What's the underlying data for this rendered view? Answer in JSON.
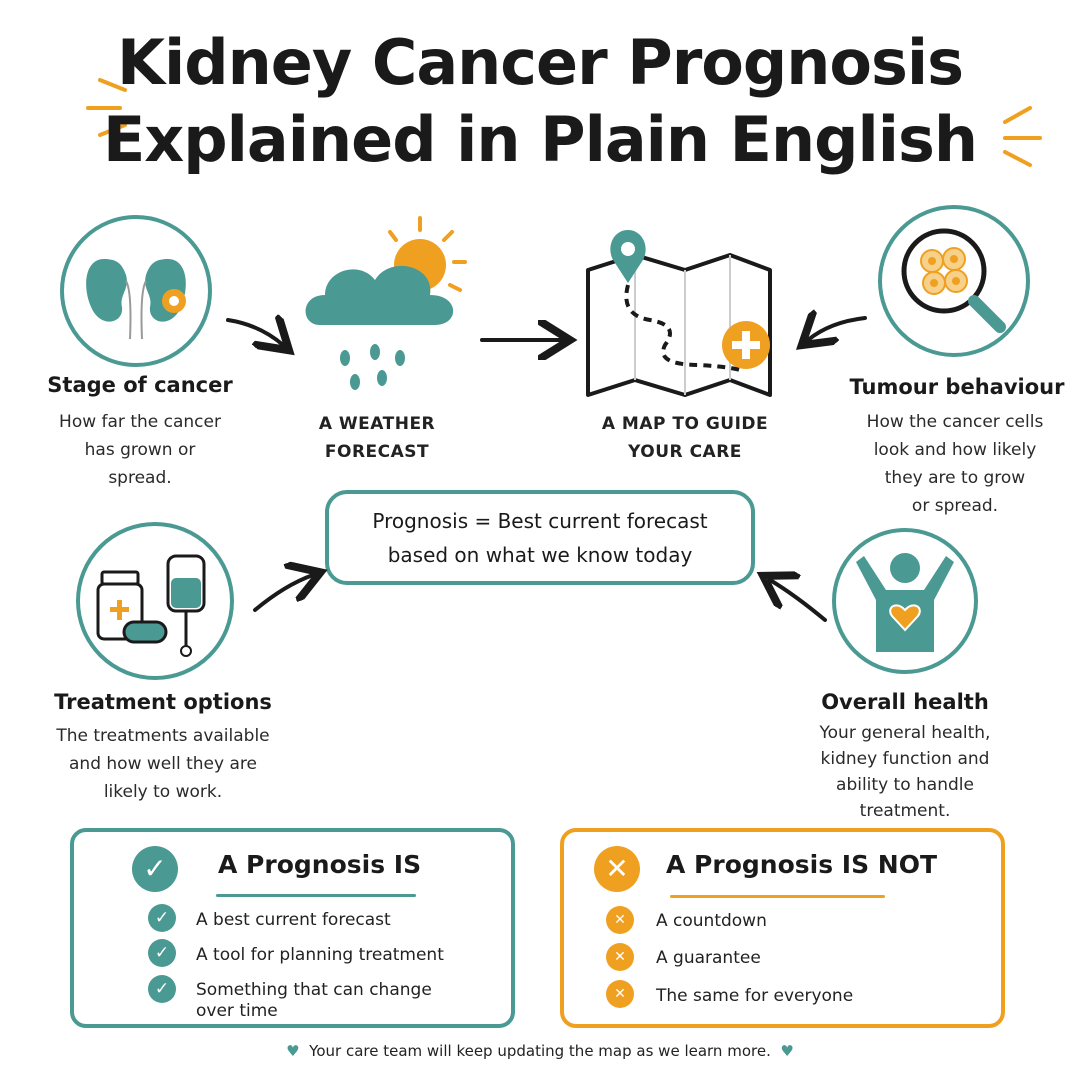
{
  "title": {
    "line1": "Kidney Cancer Prognosis",
    "line2": "Explained in Plain English"
  },
  "colors": {
    "teal": "#4a9a93",
    "orange": "#f0a020",
    "text": "#1a1a1a"
  },
  "metaphors": [
    {
      "icon": "weather-cloud-sun-icon",
      "line1": "A WEATHER",
      "line2": "FORECAST"
    },
    {
      "icon": "map-route-icon",
      "line1": "A MAP TO GUIDE",
      "line2": "YOUR CARE"
    }
  ],
  "factors": {
    "stage": {
      "icon": "kidney-icon",
      "title": "Stage of cancer",
      "desc": [
        "How far the cancer",
        "has grown or",
        "spread."
      ]
    },
    "tumour": {
      "icon": "magnifier-cells-icon",
      "title": "Tumour behaviour",
      "desc": [
        "How the cancer cells",
        "look and how likely",
        "they are to grow",
        "or spread."
      ]
    },
    "treatment": {
      "icon": "medicine-iv-icon",
      "title": "Treatment options",
      "desc": [
        "The treatments available",
        "and how well they are",
        "likely to work."
      ]
    },
    "health": {
      "icon": "person-heart-icon",
      "title": "Overall health",
      "desc": [
        "Your general health,",
        "kidney function and",
        "ability to handle",
        "treatment."
      ]
    }
  },
  "definition": {
    "line1": "Prognosis = Best current forecast",
    "line2": "based on what we know today"
  },
  "is_box": {
    "title": "A Prognosis IS",
    "items": [
      "A best current forecast",
      "A tool for planning treatment",
      "Something that can change",
      "over time"
    ]
  },
  "not_box": {
    "title": "A Prognosis IS NOT",
    "items": [
      "A countdown",
      "A guarantee",
      "The same for everyone"
    ]
  },
  "footer": "Your care team will keep updating the map as we learn more."
}
